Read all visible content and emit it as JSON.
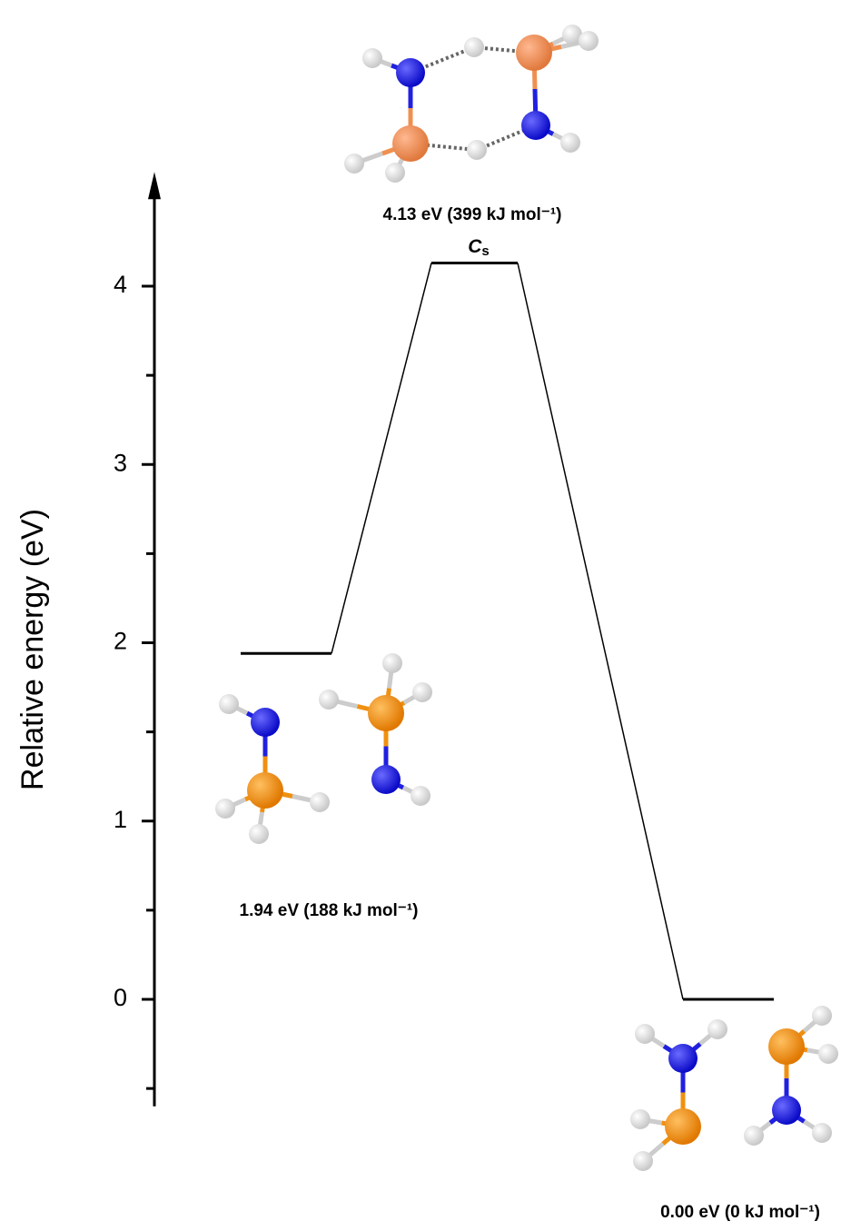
{
  "chart_data": {
    "type": "energy-profile",
    "y_label": "Relative energy (eV)",
    "ylim": [
      -0.6,
      4.6
    ],
    "yticks": [
      0,
      1,
      2,
      3,
      4
    ],
    "minor_yticks": [
      -0.5,
      0.5,
      1.5,
      2.5,
      3.5
    ],
    "values": [
      1.94,
      4.13,
      0.0
    ],
    "value_labels": [
      "1.94 eV (188 kJ mol⁻¹)",
      "4.13 eV (399 kJ mol⁻¹)",
      "0.00 eV (0 kJ mol⁻¹)"
    ],
    "symmetry": {
      "symbol": "C",
      "subscript": "s"
    },
    "color": "#000000"
  }
}
